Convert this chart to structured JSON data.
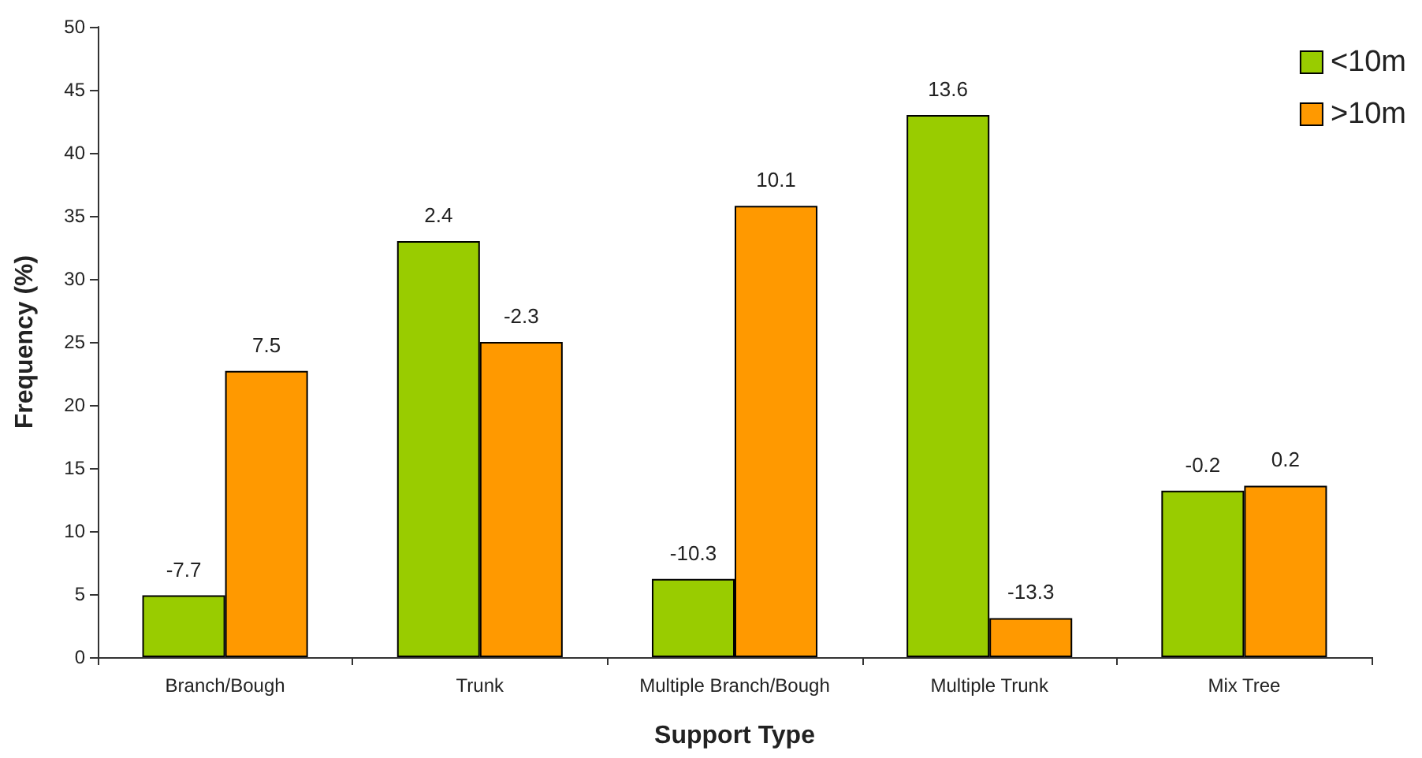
{
  "chart_data": {
    "type": "bar",
    "xlabel": "Support Type",
    "ylabel": "Frequency (%)",
    "categories": [
      "Branch/Bough",
      "Trunk",
      "Multiple Branch/Bough",
      "Multiple Trunk",
      "Mix Tree"
    ],
    "series": [
      {
        "name": "<10m",
        "color": "#99cc00",
        "values": [
          4.9,
          33.0,
          6.2,
          43.0,
          13.2
        ]
      },
      {
        "name": ">10m",
        "color": "#ff9900",
        "values": [
          22.7,
          25.0,
          35.8,
          3.1,
          13.6
        ]
      }
    ],
    "annotations": [
      {
        "text": "-7.7",
        "x": "Branch/Bough",
        "y": 4.9
      },
      {
        "text": "7.5",
        "x": "Branch/Bough",
        "y": 22.7
      },
      {
        "text": "2.4",
        "x": "Trunk",
        "y": 33.0
      },
      {
        "text": "-2.3",
        "x": "Trunk",
        "y": 25.0
      },
      {
        "text": "-10.3",
        "x": "Multiple Branch/Bough",
        "y": 6.2
      },
      {
        "text": "10.1",
        "x": "Multiple Branch/Bough",
        "y": 35.8
      },
      {
        "text": "13.6",
        "x": "Multiple Trunk",
        "y": 43.0
      },
      {
        "text": "-13.3",
        "x": "Multiple Trunk",
        "y": 3.1
      },
      {
        "text": "-0.2",
        "x": "Mix Tree",
        "y": 13.2
      },
      {
        "text": "0.2",
        "x": "Mix Tree",
        "y": 13.6
      }
    ],
    "ylim": [
      0,
      50
    ],
    "yticks": [
      0,
      5,
      10,
      15,
      20,
      25,
      30,
      35,
      40,
      45,
      50
    ],
    "grid": false,
    "legend": "top right"
  }
}
